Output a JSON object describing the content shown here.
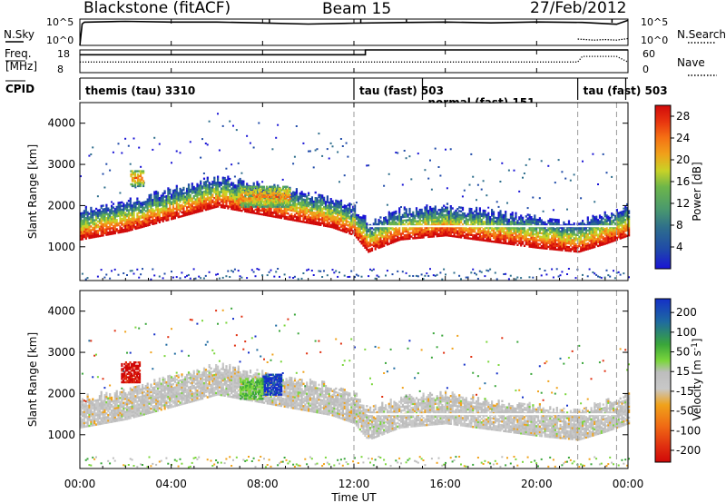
{
  "header": {
    "site": "Blackstone (fitACF)",
    "beam": "Beam 15",
    "date": "27/Feb/2012"
  },
  "strip1": {
    "left_label": "N.Sky",
    "right_label": "N.Search",
    "left_ticks": [
      "10^5",
      "10^0"
    ],
    "right_ticks": [
      "10^5",
      "10^0"
    ]
  },
  "strip2": {
    "left_label_top": "Freq.",
    "left_label_bottom": "[MHz]",
    "right_label": "Nave",
    "left_ticks": [
      "18",
      "8"
    ],
    "right_ticks": [
      "60",
      "0"
    ]
  },
  "cpid": {
    "label": "CPID",
    "segments": [
      {
        "name": "themis (tau) 3310",
        "start": 0.0,
        "end": 12.0
      },
      {
        "name": "tau (fast) 503",
        "start": 12.0,
        "end": 15.0
      },
      {
        "name": "normal (fast) 151",
        "start": 15.0,
        "end": 21.8
      },
      {
        "name": "tau (fast) 503",
        "start": 21.8,
        "end": 23.9
      }
    ]
  },
  "x_axis": {
    "label": "Time UT",
    "ticks": [
      "00:00",
      "04:00",
      "08:00",
      "12:00",
      "16:00",
      "20:00",
      "00:00"
    ]
  },
  "chart_data": [
    {
      "type": "line",
      "panel": "N.Sky / N.Search",
      "x_range_hours": [
        0,
        24
      ],
      "series": [
        {
          "name": "N.Sky",
          "x": [
            0,
            0.1,
            0.2,
            2,
            4,
            6,
            8,
            10,
            12,
            14,
            16,
            18,
            20,
            22,
            23.5,
            24
          ],
          "y_log10": [
            0,
            4.1,
            4.4,
            4.5,
            4.4,
            4.4,
            4.3,
            4.0,
            4.2,
            4.3,
            4.4,
            4.3,
            4.4,
            4.4,
            4.0,
            4.8
          ]
        },
        {
          "name": "N.Search",
          "x": [
            21.8,
            22.5,
            23,
            23.5,
            24
          ],
          "y_log10": [
            1.2,
            1.0,
            1.1,
            1.0,
            1.3
          ]
        }
      ],
      "ylim": [
        "10^0",
        "10^5"
      ]
    },
    {
      "type": "line",
      "panel": "Freq. [MHz] / Nave",
      "x_range_hours": [
        0,
        24
      ],
      "series": [
        {
          "name": "Freq. [MHz]",
          "x": [
            0,
            12.5,
            12.5,
            24
          ],
          "y": [
            15.9,
            15.9,
            18,
            18
          ]
        },
        {
          "name": "Nave",
          "x": [
            0,
            12,
            12.5,
            21.8,
            22,
            23.5,
            24
          ],
          "y": [
            28,
            28,
            28,
            28,
            43,
            43,
            28
          ]
        }
      ],
      "ylim_left": [
        8,
        18
      ],
      "ylim_right": [
        0,
        60
      ]
    },
    {
      "type": "heatmap",
      "panel": "Power",
      "ylabel": "Slant Range [km]",
      "xlabel": "",
      "x_range_hours": [
        0,
        24
      ],
      "ylim": [
        180,
        4500
      ],
      "yticks": [
        1000,
        2000,
        3000,
        4000
      ],
      "colorbar": {
        "label": "Power [dB]",
        "ticks": [
          4,
          8,
          12,
          16,
          20,
          24,
          28
        ],
        "range": [
          0,
          30
        ]
      },
      "lower_edge_km": [
        [
          0,
          1200
        ],
        [
          2,
          1400
        ],
        [
          4,
          1700
        ],
        [
          6,
          2000
        ],
        [
          11,
          1500
        ],
        [
          12,
          1300
        ],
        [
          12.6,
          900
        ],
        [
          14,
          1200
        ],
        [
          16,
          1300
        ],
        [
          18,
          1150
        ],
        [
          20,
          1000
        ],
        [
          21.8,
          900
        ],
        [
          23,
          1100
        ],
        [
          24,
          1300
        ]
      ],
      "patches": [
        {
          "x_hours": [
            7.0,
            9.2
          ],
          "range_km": [
            2000,
            2500
          ]
        },
        {
          "x_hours": [
            2.2,
            2.8
          ],
          "range_km": [
            2500,
            2900
          ]
        }
      ]
    },
    {
      "type": "heatmap",
      "panel": "Velocity",
      "ylabel": "Slant Range [km]",
      "xlabel": "Time UT",
      "x_range_hours": [
        0,
        24
      ],
      "ylim": [
        180,
        4500
      ],
      "yticks": [
        1000,
        2000,
        3000,
        4000
      ],
      "colorbar": {
        "label": "Velocity [m s-1]",
        "ticks": [
          200,
          100,
          50,
          15,
          -15,
          -50,
          -100,
          -200
        ],
        "range": [
          -250,
          250
        ]
      },
      "patches": [
        {
          "x_hours": [
            8.0,
            8.8
          ],
          "range_km": [
            2000,
            2500
          ],
          "velocity": 200
        },
        {
          "x_hours": [
            7.0,
            8.0
          ],
          "range_km": [
            1900,
            2400
          ],
          "velocity": 75
        },
        {
          "x_hours": [
            1.8,
            2.6
          ],
          "range_km": [
            2300,
            2800
          ],
          "velocity": -200
        }
      ]
    }
  ],
  "colors": {
    "power_scale": [
      "#1a14d6",
      "#1f4aa8",
      "#2e6e8c",
      "#4b9a6c",
      "#6db64a",
      "#c8d227",
      "#f0a21a",
      "#f57214",
      "#e8350f",
      "#d10a0a"
    ],
    "velocity_scale": [
      "#1430c8",
      "#1e6aa0",
      "#3aa63a",
      "#7bd63c",
      "#bdbdbd",
      "#c8c8c8",
      "#f0a21a",
      "#f06a14",
      "#e03010",
      "#d00808"
    ]
  }
}
